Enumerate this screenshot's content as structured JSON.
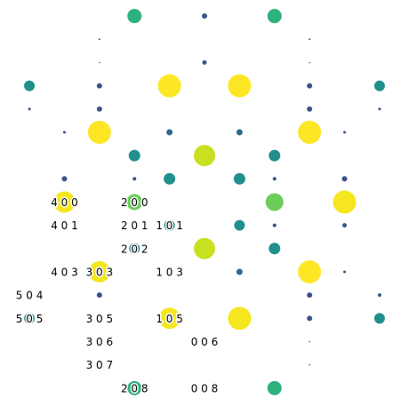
{
  "chart_data": {
    "type": "scatter",
    "xlim": [
      -0.84,
      10.84
    ],
    "ylim": [
      16.77,
      -0.69
    ],
    "x": [
      3,
      5,
      7,
      2,
      8,
      2,
      5,
      8,
      0,
      2,
      4,
      6,
      8,
      10,
      0,
      2,
      8,
      10,
      1,
      2,
      4,
      6,
      8,
      9,
      3,
      5,
      7,
      1,
      3,
      4,
      6,
      7,
      9,
      1,
      3,
      7,
      9,
      4,
      6,
      7,
      9,
      3,
      5,
      7,
      2,
      6,
      8,
      9,
      2,
      8,
      10,
      0,
      4,
      6,
      8,
      10,
      8,
      8,
      3,
      7
    ],
    "values": [
      0,
      0,
      0,
      1,
      1,
      2,
      2,
      2,
      3,
      3,
      3,
      3,
      3,
      3,
      4,
      4,
      4,
      4,
      5,
      5,
      5,
      5,
      5,
      5,
      6,
      6,
      6,
      7,
      7,
      7,
      7,
      7,
      7,
      8,
      8,
      8,
      8,
      9,
      9,
      9,
      9,
      10,
      10,
      10,
      11,
      11,
      11,
      11,
      12,
      12,
      12,
      13,
      13,
      13,
      13,
      13,
      14,
      15,
      16,
      16
    ],
    "sizes": [
      8,
      3,
      8,
      1,
      1,
      0.8,
      2.5,
      0.8,
      6,
      3,
      13,
      13,
      3,
      6,
      1.5,
      3,
      3,
      1.5,
      1.5,
      13,
      3.5,
      3.5,
      13,
      1.5,
      6.5,
      12,
      6.5,
      3,
      2,
      6.5,
      6.5,
      2,
      3,
      12,
      9,
      10,
      13,
      6,
      6,
      2,
      2.5,
      6,
      12,
      6.5,
      12,
      3.5,
      13,
      1.5,
      3,
      3,
      2,
      6,
      12,
      13,
      3,
      6,
      0.8,
      0.8,
      8,
      8
    ],
    "colors": [
      "#2db27d",
      "#3b528b",
      "#2db27d",
      "#3b528b",
      "#3b528b",
      "#3b528b",
      "#3b528b",
      "#3b528b",
      "#21908d",
      "#3b528b",
      "#fde725",
      "#fde725",
      "#3b528b",
      "#21908d",
      "#3b528b",
      "#3b528b",
      "#3b528b",
      "#3b528b",
      "#3b528b",
      "#fde725",
      "#31688e",
      "#31688e",
      "#fde725",
      "#3b528b",
      "#21908d",
      "#c8e020",
      "#21908d",
      "#3b528b",
      "#3b528b",
      "#21908d",
      "#21908d",
      "#3b528b",
      "#3b528b",
      "#f5e61f",
      "#6ccd5a",
      "#6ccd5a",
      "#f5e61f",
      "#21908d",
      "#21908d",
      "#3b528b",
      "#3b528b",
      "#21908d",
      "#c8e020",
      "#21908d",
      "#f5e61f",
      "#31688e",
      "#fde725",
      "#3b528b",
      "#3b528b",
      "#3b528b",
      "#3b528b",
      "#21908d",
      "#f5e61f",
      "#f5e61f",
      "#3b528b",
      "#21908d",
      "#3b528b",
      "#3b528b",
      "#2db27d",
      "#2db27d"
    ],
    "annotations": [
      {
        "text": "4 0 0",
        "x": 1,
        "y": 8
      },
      {
        "text": "2 0 0",
        "x": 3,
        "y": 8
      },
      {
        "text": "4 0 1",
        "x": 1,
        "y": 9
      },
      {
        "text": "2 0 1",
        "x": 3,
        "y": 9
      },
      {
        "text": "1 0 1",
        "x": 4,
        "y": 9
      },
      {
        "text": "2 0 2",
        "x": 3,
        "y": 10
      },
      {
        "text": "4 0 3",
        "x": 1,
        "y": 11
      },
      {
        "text": "3 0 3",
        "x": 2,
        "y": 11
      },
      {
        "text": "1 0 3",
        "x": 4,
        "y": 11
      },
      {
        "text": "5 0 4",
        "x": 0,
        "y": 12
      },
      {
        "text": "5 0 5",
        "x": 0,
        "y": 13
      },
      {
        "text": "3 0 5",
        "x": 2,
        "y": 13
      },
      {
        "text": "1 0 5",
        "x": 4,
        "y": 13
      },
      {
        "text": "3 0 6",
        "x": 2,
        "y": 14
      },
      {
        "text": "0 0 6",
        "x": 5,
        "y": 14
      },
      {
        "text": "3 0 7",
        "x": 2,
        "y": 15
      },
      {
        "text": "2 0 8",
        "x": 3,
        "y": 16
      },
      {
        "text": "0 0 8",
        "x": 5,
        "y": 16
      }
    ]
  }
}
